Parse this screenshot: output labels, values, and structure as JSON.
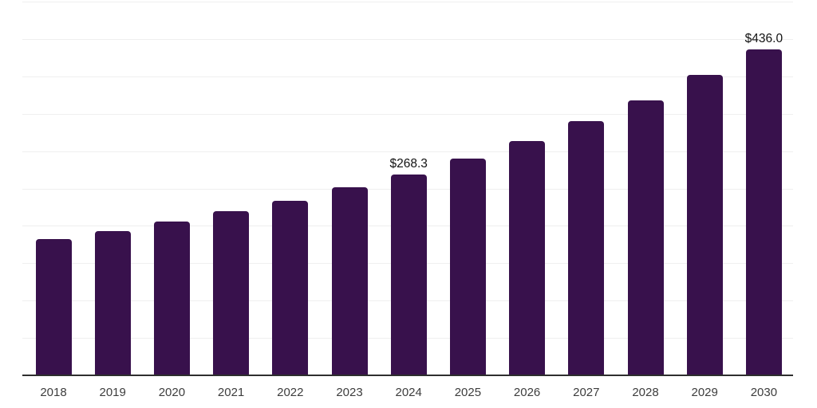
{
  "chart_data": {
    "type": "bar",
    "title": "",
    "xlabel": "",
    "ylabel": "",
    "categories": [
      "2018",
      "2019",
      "2020",
      "2021",
      "2022",
      "2023",
      "2024",
      "2025",
      "2026",
      "2027",
      "2028",
      "2029",
      "2030"
    ],
    "values": [
      182.7,
      193.3,
      206.0,
      219.5,
      234.0,
      251.4,
      268.3,
      290.4,
      313.5,
      339.7,
      367.8,
      401.4,
      436.0
    ],
    "data_labels": {
      "2024": "$268.3",
      "2030": "$436.0"
    },
    "ylim": [
      0,
      500
    ],
    "gridline_interval": 50,
    "grid": "horizontal",
    "legend": "none",
    "y_axis_tick_labels_shown": false,
    "colors": {
      "bar": "#38114C",
      "gridline": "#efefef",
      "axis_line": "#2e2e2e",
      "tick_label": "#3d3d3d",
      "data_label": "#111111"
    }
  }
}
